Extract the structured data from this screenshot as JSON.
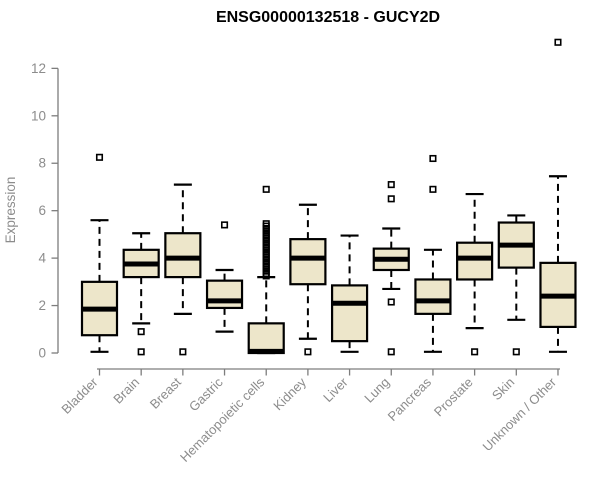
{
  "chart_data": {
    "type": "boxplot",
    "title": "ENSG00000132518 - GUCY2D",
    "ylabel": "Expression",
    "xlabel": "",
    "ylim": [
      0,
      13.4
    ],
    "yticks": [
      0,
      2,
      4,
      6,
      8,
      10,
      12
    ],
    "grid": false,
    "legend": false,
    "colors": {
      "box_fill": "#ede6ca",
      "box_stroke": "#000000",
      "median": "#000000",
      "whisker": "#000000",
      "outlier": "#000000",
      "axis_line": "#7d7d7d",
      "axis_text": "#8c8c8c",
      "title": "#000000",
      "background": "#ffffff"
    },
    "categories": [
      "Bladder",
      "Brain",
      "Breast",
      "Gastric",
      "Hematopoietic cells",
      "Kidney",
      "Liver",
      "Lung",
      "Pancreas",
      "Prostate",
      "Skin",
      "Unknown / Other"
    ],
    "boxes": [
      {
        "category": "Bladder",
        "whisker_low": 0.05,
        "q1": 0.75,
        "median": 1.85,
        "q3": 3.0,
        "whisker_high": 5.6,
        "outliers": [
          8.25
        ]
      },
      {
        "category": "Brain",
        "whisker_low": 1.25,
        "q1": 3.2,
        "median": 3.75,
        "q3": 4.35,
        "whisker_high": 5.05,
        "outliers": [
          0.9,
          0.05
        ]
      },
      {
        "category": "Breast",
        "whisker_low": 1.65,
        "q1": 3.2,
        "median": 4.0,
        "q3": 5.05,
        "whisker_high": 7.1,
        "outliers": [
          0.05
        ]
      },
      {
        "category": "Gastric",
        "whisker_low": 0.9,
        "q1": 1.9,
        "median": 2.2,
        "q3": 3.05,
        "whisker_high": 3.5,
        "outliers": [
          5.4
        ]
      },
      {
        "category": "Hematopoietic cells",
        "whisker_low": 0.0,
        "q1": 0.0,
        "median": 0.07,
        "q3": 1.25,
        "whisker_high": 3.2,
        "outliers": [
          3.25,
          3.35,
          3.45,
          3.55,
          3.65,
          3.75,
          3.85,
          3.95,
          4.05,
          4.15,
          4.25,
          4.35,
          4.45,
          4.55,
          4.65,
          4.75,
          4.85,
          4.95,
          5.05,
          5.15,
          5.25,
          5.35,
          5.45,
          6.9
        ]
      },
      {
        "category": "Kidney",
        "whisker_low": 0.6,
        "q1": 2.9,
        "median": 4.0,
        "q3": 4.8,
        "whisker_high": 6.25,
        "outliers": [
          0.05
        ]
      },
      {
        "category": "Liver",
        "whisker_low": 0.05,
        "q1": 0.5,
        "median": 2.1,
        "q3": 2.85,
        "whisker_high": 4.95,
        "outliers": []
      },
      {
        "category": "Lung",
        "whisker_low": 2.7,
        "q1": 3.5,
        "median": 3.95,
        "q3": 4.4,
        "whisker_high": 5.25,
        "outliers": [
          7.1,
          6.5,
          2.15,
          0.05
        ]
      },
      {
        "category": "Pancreas",
        "whisker_low": 0.05,
        "q1": 1.65,
        "median": 2.2,
        "q3": 3.1,
        "whisker_high": 4.35,
        "outliers": [
          8.2,
          6.9
        ]
      },
      {
        "category": "Prostate",
        "whisker_low": 1.05,
        "q1": 3.1,
        "median": 4.0,
        "q3": 4.65,
        "whisker_high": 6.7,
        "outliers": [
          0.05
        ]
      },
      {
        "category": "Skin",
        "whisker_low": 1.4,
        "q1": 3.6,
        "median": 4.55,
        "q3": 5.5,
        "whisker_high": 5.8,
        "outliers": [
          0.05
        ]
      },
      {
        "category": "Unknown / Other",
        "whisker_low": 0.05,
        "q1": 1.1,
        "median": 2.4,
        "q3": 3.8,
        "whisker_high": 7.45,
        "outliers": [
          13.1
        ]
      }
    ]
  }
}
